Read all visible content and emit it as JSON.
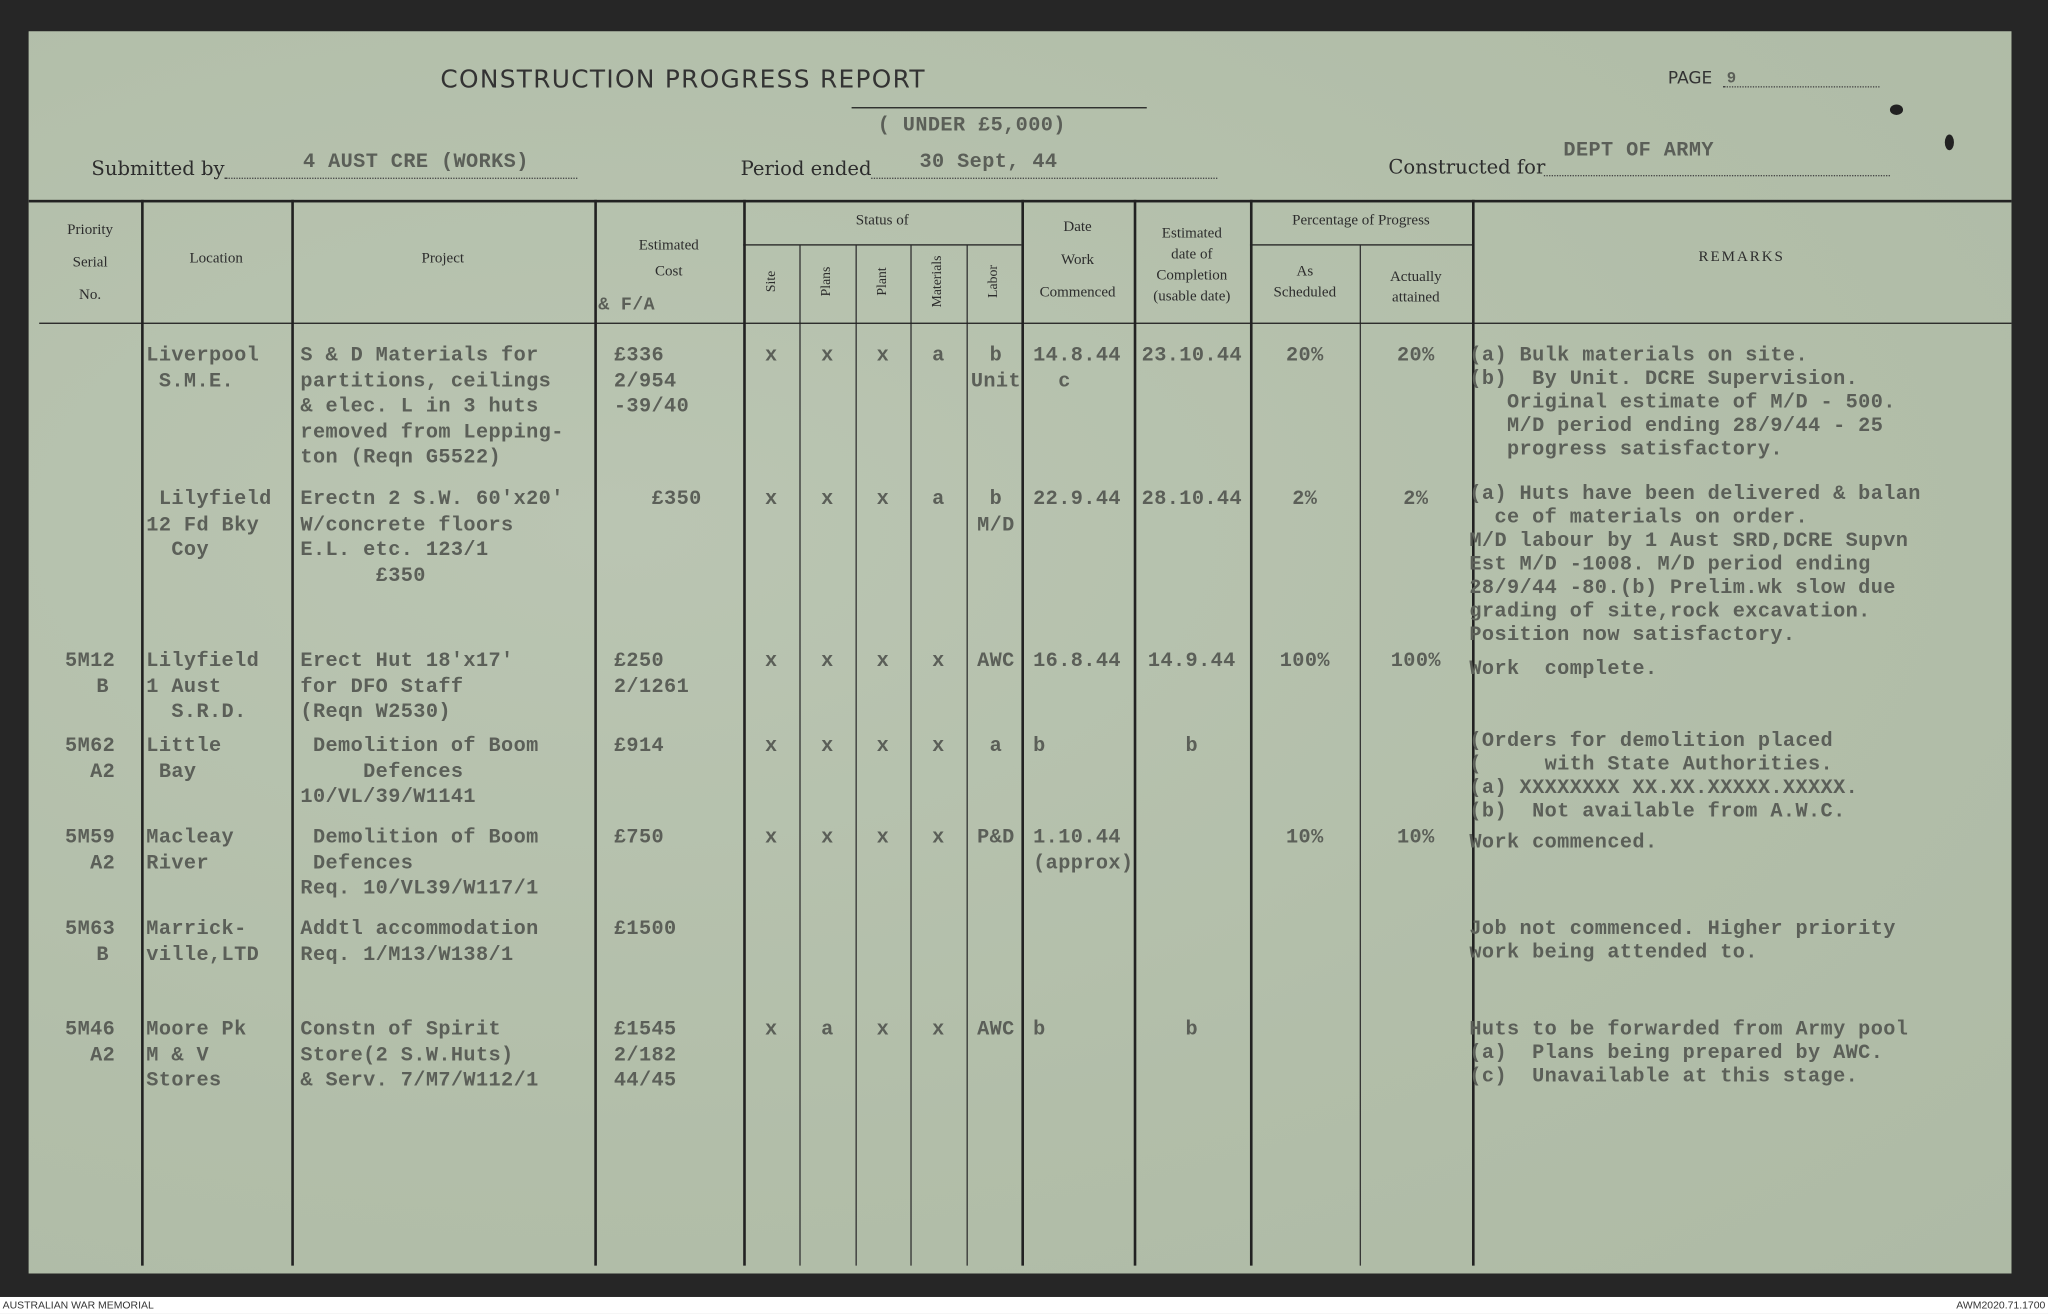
{
  "form": {
    "title": "CONSTRUCTION PROGRESS REPORT",
    "subtitle": "( UNDER £5,000)",
    "page_label": "PAGE",
    "page_value": "9",
    "submitted_by_label": "Submitted by",
    "submitted_by": "4 AUST CRE (WORKS)",
    "period_ended_label": "Period ended",
    "period_ended": "30 Sept, 44",
    "constructed_for_label": "Constructed for",
    "constructed_for": "DEPT OF ARMY"
  },
  "headers": {
    "priority": "Priority\nSerial\nNo.",
    "location": "Location",
    "project": "Project",
    "cost": "Estimated\nCost",
    "cost_typed": "& F/A",
    "status_of": "Status of",
    "site": "Site",
    "plans": "Plans",
    "plant": "Plant",
    "materials": "Materials",
    "labor": "Labor",
    "date_commenced": "Date\nWork\nCommenced",
    "est_completion": "Estimated\ndate of\nCompletion\n(usable date)",
    "pct": "Percentage of Progress",
    "as_scheduled": "As\nScheduled",
    "actually_attained": "Actually\nattained",
    "remarks": "REMARKS"
  },
  "rows": [
    {
      "serial": "",
      "location": "Liverpool\n S.M.E.",
      "project": "S & D Materials for\npartitions, ceilings\n& elec. L in 3 huts\nremoved from Lepping-\nton (Reqn G5522)",
      "cost": "£336\n2/954\n-39/40",
      "site": "x",
      "plans": "x",
      "plant": "x",
      "materials": "a",
      "labor": "b\nUnit",
      "commenced": "14.8.44\n  c",
      "completion": "23.10.44",
      "scheduled": "20%",
      "attained": "20%",
      "remarks": "(a) Bulk materials on site.\n(b)  By Unit. DCRE Supervision.\n   Original estimate of M/D - 500.\n   M/D period ending 28/9/44 - 25\n   progress satisfactory."
    },
    {
      "serial": "",
      "location": " Lilyfield\n12 Fd Bky\n  Coy",
      "project": "Erectn 2 S.W. 60'x20'\nW/concrete floors\nE.L. etc. 123/1\n      £350",
      "cost": "   £350",
      "site": "x",
      "plans": "x",
      "plant": "x",
      "materials": "a",
      "labor": "b\nM/D",
      "commenced": "22.9.44",
      "completion": "28.10.44",
      "scheduled": "2%",
      "attained": "2%",
      "remarks": "(a) Huts have been delivered & balan\n  ce of materials on order.\nM/D labour by 1 Aust SRD,DCRE Supvn\nEst M/D -1008. M/D period ending\n28/9/44 -80.(b) Prelim.wk slow due\ngrading of site,rock excavation.\nPosition now satisfactory."
    },
    {
      "serial": "5M12\n  B",
      "location": "Lilyfield\n1 Aust\n  S.R.D.",
      "project": "Erect Hut 18'x17'\nfor DFO Staff\n(Reqn W2530)",
      "cost": "£250\n2/1261",
      "site": "x",
      "plans": "x",
      "plant": "x",
      "materials": "x",
      "labor": "AWC",
      "commenced": "16.8.44",
      "completion": "14.9.44",
      "scheduled": "100%",
      "attained": "100%",
      "remarks": "Work  complete."
    },
    {
      "serial": "5M62\n  A2",
      "location": "Little\n Bay",
      "project": " Demolition of Boom\n     Defences\n10/VL/39/W1141",
      "cost": "£914",
      "site": "x",
      "plans": "x",
      "plant": "x",
      "materials": "x",
      "labor": "a",
      "commenced": "b",
      "completion": "b",
      "scheduled": "",
      "attained": "",
      "remarks": "(Orders for demolition placed\n(     with State Authorities.\n(a) XXXXXXXX XX.XX.XXXXX.XXXXX.\n(b)  Not available from A.W.C."
    },
    {
      "serial": "5M59\n  A2",
      "location": "Macleay\nRiver",
      "project": " Demolition of Boom\n Defences\nReq. 10/VL39/W117/1",
      "cost": "£750",
      "site": "x",
      "plans": "x",
      "plant": "x",
      "materials": "x",
      "labor": "P&D",
      "commenced": "1.10.44\n(approx)",
      "completion": "",
      "scheduled": "10%",
      "attained": "10%",
      "remarks": "Work commenced."
    },
    {
      "serial": "5M63\n  B",
      "location": "Marrick-\nville,LTD",
      "project": "Addtl accommodation\nReq. 1/M13/W138/1",
      "cost": "£1500",
      "site": "",
      "plans": "",
      "plant": "",
      "materials": "",
      "labor": "",
      "commenced": "",
      "completion": "",
      "scheduled": "",
      "attained": "",
      "remarks": "Job not commenced. Higher priority\nwork being attended to."
    },
    {
      "serial": "5M46\n  A2",
      "location": "Moore Pk\nM & V\nStores",
      "project": "Constn of Spirit\nStore(2 S.W.Huts)\n& Serv. 7/M7/W112/1",
      "cost": "£1545\n2/182\n44/45",
      "site": "x",
      "plans": "a",
      "plant": "x",
      "materials": "x",
      "labor": "AWC",
      "commenced": "b",
      "completion": "b",
      "scheduled": "",
      "attained": "",
      "remarks": "Huts to be forwarded from Army pool\n(a)  Plans being prepared by AWC.\n(c)  Unavailable at this stage."
    }
  ],
  "footer": {
    "left": "AUSTRALIAN WAR MEMORIAL",
    "right": "AWM2020.71.1700"
  },
  "colors": {
    "paper": "#b4c0ac",
    "ink": "#5b5f58",
    "border": "#262626"
  }
}
